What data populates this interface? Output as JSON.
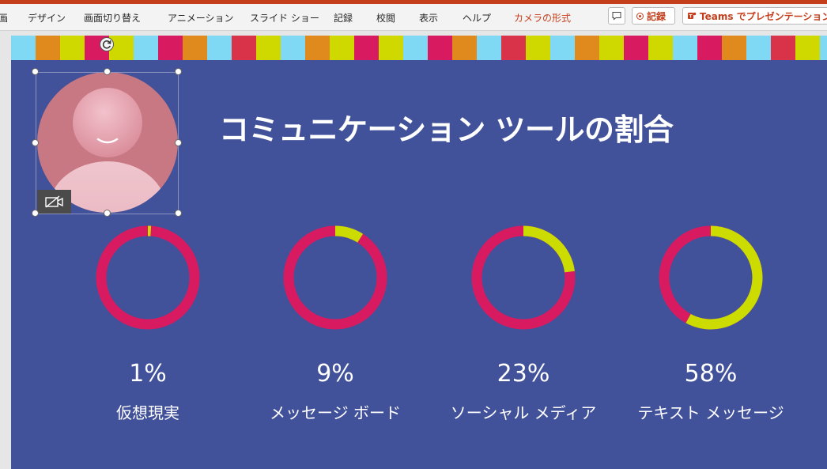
{
  "ribbon": {
    "tabs": [
      "画",
      "デザイン",
      "画面切り替え",
      "アニメーション",
      "スライド ショー",
      "記録",
      "校閲",
      "表示",
      "ヘルプ"
    ],
    "context_tab": "カメラの形式",
    "record_label": "記録",
    "teams_label": "Teams でプレゼンテーション"
  },
  "slide": {
    "title": "コミュニケーション ツールの割合",
    "stats": [
      {
        "percent": "1%",
        "label": "仮想現実",
        "fraction": 0.01
      },
      {
        "percent": "9%",
        "label": "メッセージ ボード",
        "fraction": 0.09
      },
      {
        "percent": "23%",
        "label": "ソーシャル メディア",
        "fraction": 0.23
      },
      {
        "percent": "58%",
        "label": "テキスト メッセージ",
        "fraction": 0.58
      }
    ]
  },
  "colors": {
    "slide_bg": "#41519a",
    "ring_main": "#d81b60",
    "ring_accent": "#cddc00",
    "stripe": [
      "#7fd9f5",
      "#e08a1e",
      "#cfd900",
      "#d81b60",
      "#cfd900",
      "#7fd9f5",
      "#d81b60",
      "#e08a1e",
      "#7fd9f5",
      "#d9334a",
      "#cfd900"
    ]
  }
}
